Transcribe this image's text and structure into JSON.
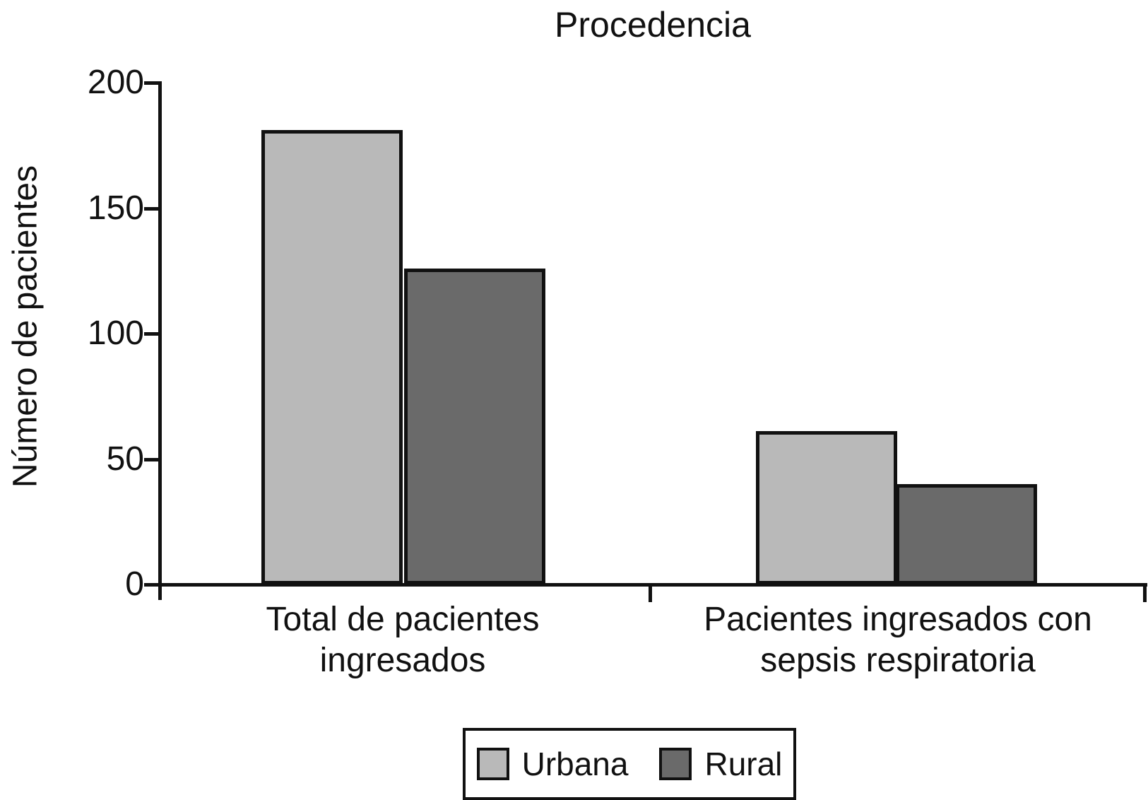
{
  "chart_data": {
    "type": "bar",
    "title": "Procedencia",
    "xlabel": "",
    "ylabel": "Número de pacientes",
    "categories": [
      "Total de pacientes ingresados",
      "Pacientes ingresados con sepsis respiratoria"
    ],
    "series": [
      {
        "name": "Urbana",
        "color": "#b9b9b9",
        "values": [
          181,
          61
        ]
      },
      {
        "name": "Rural",
        "color": "#6a6a6a",
        "values": [
          126,
          40
        ]
      }
    ],
    "ylim": [
      0,
      200
    ],
    "yticks": [
      0,
      50,
      100,
      150,
      200
    ],
    "grid": false,
    "legend_position": "bottom",
    "axis_color": "#111111",
    "background_color": "#ffffff"
  }
}
